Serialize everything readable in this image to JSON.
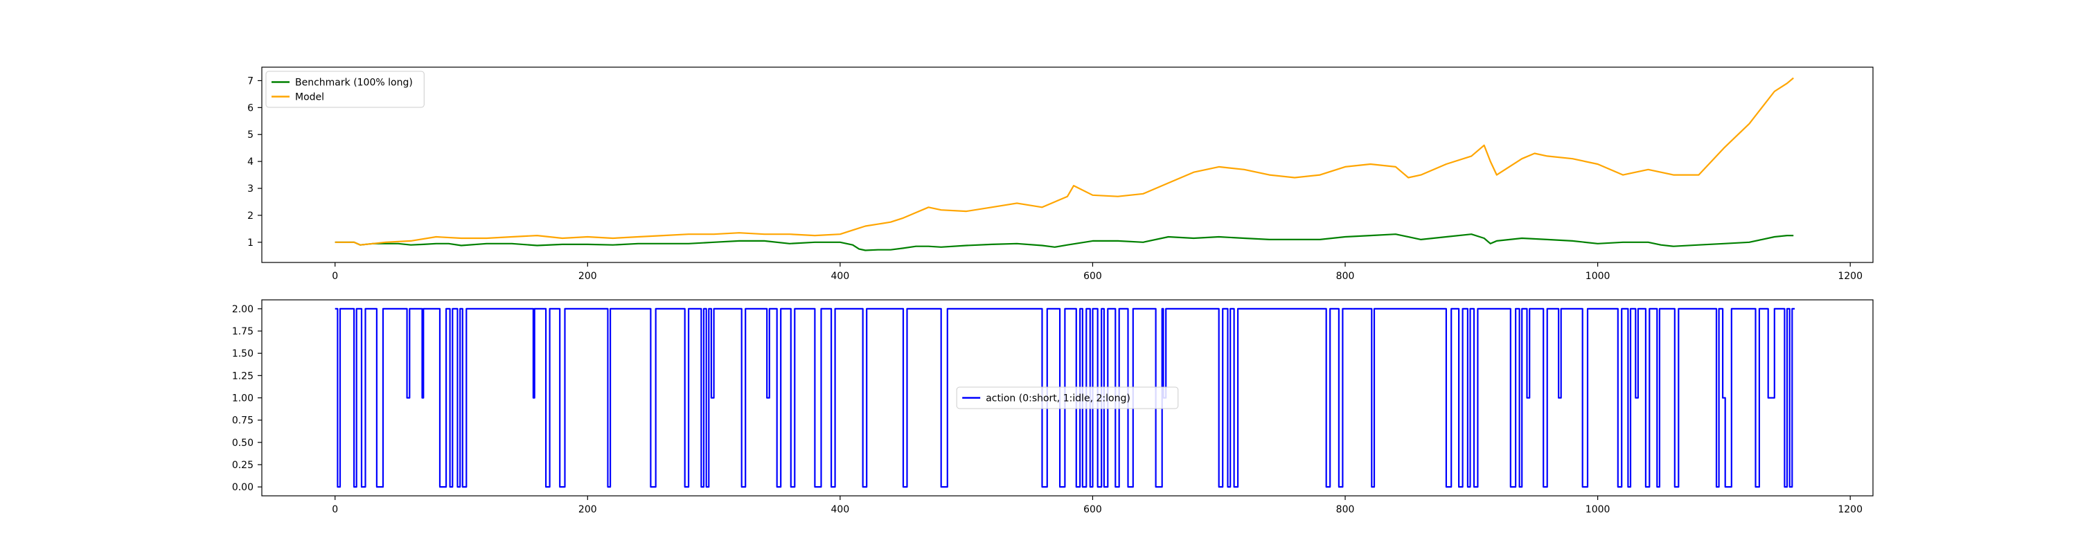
{
  "chart_data": [
    {
      "type": "line",
      "title": "",
      "xlabel": "",
      "ylabel": "",
      "xlim": [
        -58,
        1218
      ],
      "ylim": [
        0.25,
        7.5
      ],
      "xticks": [
        0,
        200,
        400,
        600,
        800,
        1000,
        1200
      ],
      "yticks": [
        1,
        2,
        3,
        4,
        5,
        6,
        7
      ],
      "grid": false,
      "legend_position": "top-left",
      "series": [
        {
          "name": "Benchmark (100% long)",
          "color": "#008000",
          "x": [
            0,
            15,
            20,
            30,
            40,
            50,
            60,
            70,
            80,
            90,
            100,
            120,
            140,
            160,
            180,
            200,
            220,
            240,
            260,
            280,
            300,
            320,
            340,
            360,
            380,
            400,
            410,
            415,
            420,
            430,
            440,
            450,
            460,
            470,
            480,
            500,
            520,
            540,
            560,
            570,
            580,
            600,
            620,
            640,
            660,
            680,
            700,
            720,
            740,
            760,
            780,
            800,
            820,
            840,
            860,
            880,
            900,
            910,
            915,
            920,
            940,
            960,
            980,
            1000,
            1020,
            1040,
            1050,
            1060,
            1080,
            1100,
            1120,
            1130,
            1140,
            1150,
            1155
          ],
          "values": [
            1.0,
            1.0,
            0.9,
            0.95,
            0.95,
            0.95,
            0.9,
            0.92,
            0.95,
            0.95,
            0.88,
            0.95,
            0.95,
            0.88,
            0.92,
            0.92,
            0.9,
            0.95,
            0.95,
            0.95,
            1.0,
            1.05,
            1.05,
            0.95,
            1.0,
            1.0,
            0.9,
            0.75,
            0.7,
            0.72,
            0.72,
            0.78,
            0.85,
            0.85,
            0.82,
            0.88,
            0.92,
            0.95,
            0.88,
            0.82,
            0.9,
            1.05,
            1.05,
            1.0,
            1.2,
            1.15,
            1.2,
            1.15,
            1.1,
            1.1,
            1.1,
            1.2,
            1.25,
            1.3,
            1.1,
            1.2,
            1.3,
            1.15,
            0.95,
            1.05,
            1.15,
            1.1,
            1.05,
            0.95,
            1.0,
            1.0,
            0.9,
            0.85,
            0.9,
            0.95,
            1.0,
            1.1,
            1.2,
            1.25,
            1.25
          ]
        },
        {
          "name": "Model",
          "color": "#ffa500",
          "x": [
            0,
            15,
            20,
            30,
            40,
            60,
            80,
            100,
            120,
            140,
            160,
            180,
            200,
            220,
            240,
            260,
            280,
            300,
            320,
            340,
            360,
            380,
            400,
            410,
            420,
            440,
            450,
            460,
            470,
            480,
            500,
            520,
            540,
            560,
            570,
            580,
            585,
            600,
            620,
            640,
            660,
            680,
            700,
            720,
            740,
            760,
            780,
            800,
            820,
            840,
            850,
            860,
            880,
            900,
            910,
            915,
            920,
            940,
            950,
            960,
            980,
            1000,
            1020,
            1040,
            1060,
            1080,
            1100,
            1120,
            1130,
            1140,
            1150,
            1155
          ],
          "values": [
            1.0,
            1.0,
            0.9,
            0.95,
            1.0,
            1.05,
            1.2,
            1.15,
            1.15,
            1.2,
            1.25,
            1.15,
            1.2,
            1.15,
            1.2,
            1.25,
            1.3,
            1.3,
            1.35,
            1.3,
            1.3,
            1.25,
            1.3,
            1.45,
            1.6,
            1.75,
            1.9,
            2.1,
            2.3,
            2.2,
            2.15,
            2.3,
            2.45,
            2.3,
            2.5,
            2.7,
            3.1,
            2.75,
            2.7,
            2.8,
            3.2,
            3.6,
            3.8,
            3.7,
            3.5,
            3.4,
            3.5,
            3.8,
            3.9,
            3.8,
            3.4,
            3.5,
            3.9,
            4.2,
            4.6,
            4.0,
            3.5,
            4.1,
            4.3,
            4.2,
            4.1,
            3.9,
            3.5,
            3.7,
            3.5,
            3.5,
            4.5,
            5.4,
            6.0,
            6.6,
            6.9,
            7.1
          ]
        }
      ]
    },
    {
      "type": "line",
      "title": "",
      "xlabel": "",
      "ylabel": "",
      "xlim": [
        -58,
        1218
      ],
      "ylim": [
        -0.1,
        2.1
      ],
      "xticks": [
        0,
        200,
        400,
        600,
        800,
        1000,
        1200
      ],
      "yticks": [
        0.0,
        0.25,
        0.5,
        0.75,
        1.0,
        1.25,
        1.5,
        1.75,
        2.0
      ],
      "yticklabels": [
        "0.00",
        "0.25",
        "0.50",
        "0.75",
        "1.00",
        "1.25",
        "1.50",
        "1.75",
        "2.00"
      ],
      "grid": false,
      "legend_position": "center",
      "series": [
        {
          "name": "action (0:short, 1:idle, 2:long)",
          "color": "#0000ff",
          "steps": [
            [
              0,
              2
            ],
            [
              2,
              0
            ],
            [
              4,
              2
            ],
            [
              15,
              0
            ],
            [
              17,
              2
            ],
            [
              21,
              0
            ],
            [
              24,
              2
            ],
            [
              33,
              0
            ],
            [
              38,
              2
            ],
            [
              57,
              1
            ],
            [
              59,
              2
            ],
            [
              69,
              1
            ],
            [
              70,
              2
            ],
            [
              83,
              0
            ],
            [
              88,
              2
            ],
            [
              91,
              0
            ],
            [
              93,
              2
            ],
            [
              97,
              0
            ],
            [
              99,
              2
            ],
            [
              101,
              0
            ],
            [
              104,
              2
            ],
            [
              157,
              1
            ],
            [
              158,
              2
            ],
            [
              167,
              0
            ],
            [
              170,
              2
            ],
            [
              178,
              0
            ],
            [
              182,
              2
            ],
            [
              216,
              0
            ],
            [
              218,
              2
            ],
            [
              250,
              0
            ],
            [
              254,
              2
            ],
            [
              277,
              0
            ],
            [
              280,
              2
            ],
            [
              290,
              0
            ],
            [
              292,
              2
            ],
            [
              294,
              0
            ],
            [
              296,
              2
            ],
            [
              298,
              1
            ],
            [
              300,
              2
            ],
            [
              322,
              0
            ],
            [
              325,
              2
            ],
            [
              342,
              1
            ],
            [
              344,
              2
            ],
            [
              350,
              0
            ],
            [
              353,
              2
            ],
            [
              361,
              0
            ],
            [
              364,
              2
            ],
            [
              380,
              0
            ],
            [
              385,
              2
            ],
            [
              393,
              0
            ],
            [
              396,
              2
            ],
            [
              418,
              0
            ],
            [
              421,
              2
            ],
            [
              450,
              0
            ],
            [
              453,
              2
            ],
            [
              480,
              0
            ],
            [
              485,
              2
            ],
            [
              560,
              0
            ],
            [
              564,
              2
            ],
            [
              574,
              0
            ],
            [
              578,
              2
            ],
            [
              587,
              0
            ],
            [
              590,
              2
            ],
            [
              592,
              0
            ],
            [
              595,
              2
            ],
            [
              598,
              0
            ],
            [
              600,
              2
            ],
            [
              604,
              0
            ],
            [
              607,
              2
            ],
            [
              609,
              0
            ],
            [
              612,
              2
            ],
            [
              618,
              0
            ],
            [
              621,
              2
            ],
            [
              628,
              0
            ],
            [
              632,
              2
            ],
            [
              650,
              0
            ],
            [
              655,
              2
            ],
            [
              656,
              1
            ],
            [
              658,
              2
            ],
            [
              700,
              0
            ],
            [
              703,
              2
            ],
            [
              707,
              0
            ],
            [
              709,
              2
            ],
            [
              712,
              0
            ],
            [
              715,
              2
            ],
            [
              785,
              0
            ],
            [
              788,
              2
            ],
            [
              795,
              0
            ],
            [
              798,
              2
            ],
            [
              821,
              0
            ],
            [
              823,
              2
            ],
            [
              880,
              0
            ],
            [
              884,
              2
            ],
            [
              890,
              0
            ],
            [
              893,
              2
            ],
            [
              897,
              0
            ],
            [
              899,
              2
            ],
            [
              902,
              0
            ],
            [
              905,
              2
            ],
            [
              931,
              0
            ],
            [
              935,
              2
            ],
            [
              938,
              0
            ],
            [
              940,
              2
            ],
            [
              944,
              1
            ],
            [
              946,
              2
            ],
            [
              957,
              0
            ],
            [
              960,
              2
            ],
            [
              969,
              1
            ],
            [
              971,
              2
            ],
            [
              988,
              0
            ],
            [
              992,
              2
            ],
            [
              1016,
              0
            ],
            [
              1019,
              2
            ],
            [
              1024,
              0
            ],
            [
              1026,
              2
            ],
            [
              1030,
              1
            ],
            [
              1032,
              2
            ],
            [
              1038,
              0
            ],
            [
              1041,
              2
            ],
            [
              1047,
              0
            ],
            [
              1049,
              2
            ],
            [
              1061,
              0
            ],
            [
              1064,
              2
            ],
            [
              1094,
              0
            ],
            [
              1096,
              2
            ],
            [
              1099,
              1
            ],
            [
              1101,
              0
            ],
            [
              1106,
              2
            ],
            [
              1125,
              0
            ],
            [
              1128,
              2
            ],
            [
              1135,
              1
            ],
            [
              1140,
              2
            ],
            [
              1148,
              0
            ],
            [
              1150,
              2
            ],
            [
              1152,
              0
            ],
            [
              1154,
              2
            ],
            [
              1156,
              2
            ]
          ]
        }
      ]
    }
  ]
}
